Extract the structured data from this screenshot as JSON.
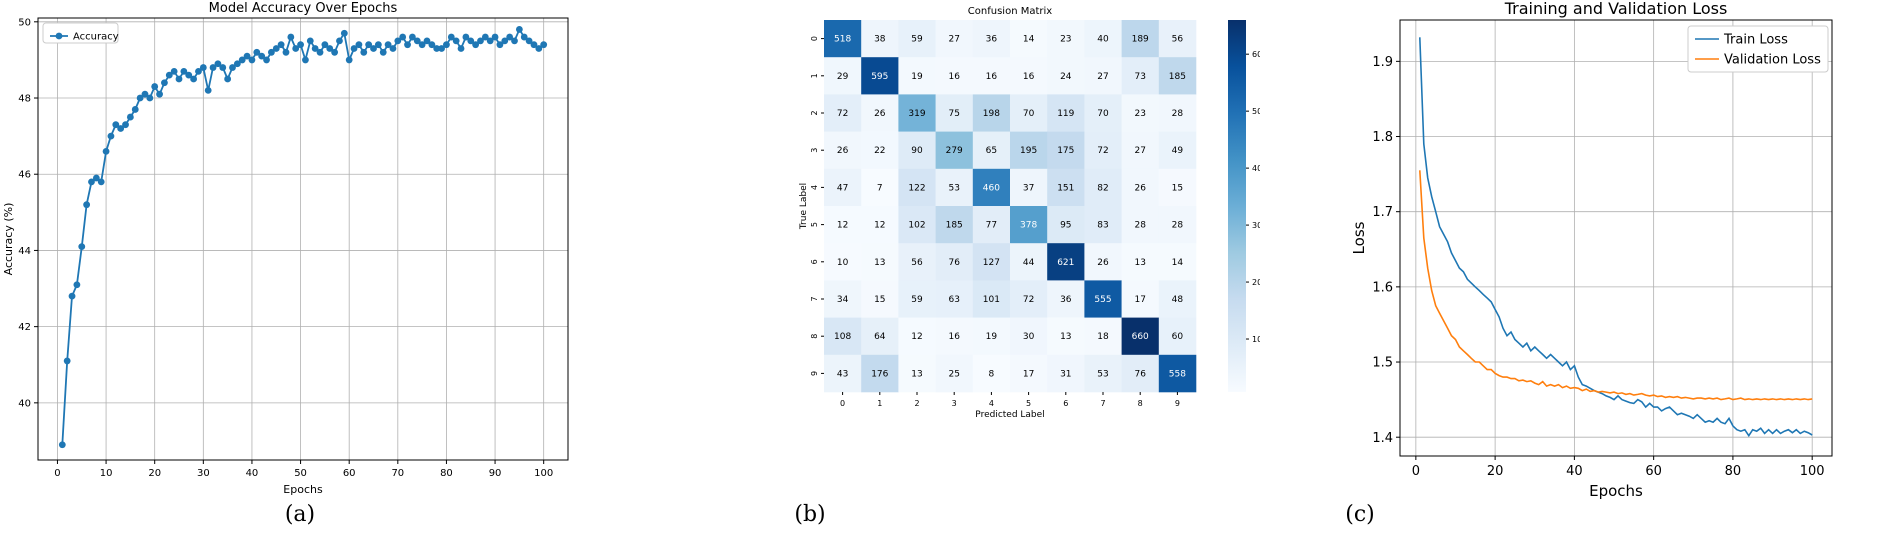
{
  "colors": {
    "blue": "#1f77b4",
    "orange": "#ff7f0e",
    "grid": "#b0b0b0"
  },
  "chart_data": [
    {
      "type": "line",
      "title": "Model Accuracy Over Epochs",
      "xlabel": "Epochs",
      "ylabel": "Accuracy (%)",
      "xlim": [
        -4,
        105
      ],
      "ylim": [
        38.5,
        50.1
      ],
      "xticks": [
        0,
        10,
        20,
        30,
        40,
        50,
        60,
        70,
        80,
        90,
        100
      ],
      "yticks": [
        40,
        42,
        44,
        46,
        48,
        50
      ],
      "grid": true,
      "legend_position": "top-left",
      "caption": "(a)",
      "series": [
        {
          "name": "Accuracy",
          "x": [
            1,
            2,
            3,
            4,
            5,
            6,
            7,
            8,
            9,
            10,
            11,
            12,
            13,
            14,
            15,
            16,
            17,
            18,
            19,
            20,
            21,
            22,
            23,
            24,
            25,
            26,
            27,
            28,
            29,
            30,
            31,
            32,
            33,
            34,
            35,
            36,
            37,
            38,
            39,
            40,
            41,
            42,
            43,
            44,
            45,
            46,
            47,
            48,
            49,
            50,
            51,
            52,
            53,
            54,
            55,
            56,
            57,
            58,
            59,
            60,
            61,
            62,
            63,
            64,
            65,
            66,
            67,
            68,
            69,
            70,
            71,
            72,
            73,
            74,
            75,
            76,
            77,
            78,
            79,
            80,
            81,
            82,
            83,
            84,
            85,
            86,
            87,
            88,
            89,
            90,
            91,
            92,
            93,
            94,
            95,
            96,
            97,
            98,
            99,
            100
          ],
          "values": [
            38.9,
            41.1,
            42.8,
            43.1,
            44.1,
            45.2,
            45.8,
            45.9,
            45.8,
            46.6,
            47.0,
            47.3,
            47.2,
            47.3,
            47.5,
            47.7,
            48.0,
            48.1,
            48.0,
            48.3,
            48.1,
            48.4,
            48.6,
            48.7,
            48.5,
            48.7,
            48.6,
            48.5,
            48.7,
            48.8,
            48.2,
            48.8,
            48.9,
            48.8,
            48.5,
            48.8,
            48.9,
            49.0,
            49.1,
            49.0,
            49.2,
            49.1,
            49.0,
            49.2,
            49.3,
            49.4,
            49.2,
            49.6,
            49.3,
            49.4,
            49.0,
            49.5,
            49.3,
            49.2,
            49.4,
            49.3,
            49.2,
            49.5,
            49.7,
            49.0,
            49.3,
            49.4,
            49.2,
            49.4,
            49.3,
            49.4,
            49.2,
            49.4,
            49.3,
            49.5,
            49.6,
            49.4,
            49.6,
            49.5,
            49.4,
            49.5,
            49.4,
            49.3,
            49.3,
            49.4,
            49.6,
            49.5,
            49.3,
            49.6,
            49.5,
            49.4,
            49.5,
            49.6,
            49.5,
            49.6,
            49.4,
            49.5,
            49.6,
            49.5,
            49.8,
            49.6,
            49.5,
            49.4,
            49.3,
            49.4
          ]
        }
      ]
    },
    {
      "type": "heatmap",
      "title": "Confusion Matrix",
      "xlabel": "Predicted Label",
      "ylabel": "True Label",
      "row_labels": [
        "0",
        "1",
        "2",
        "3",
        "4",
        "5",
        "6",
        "7",
        "8",
        "9"
      ],
      "col_labels": [
        "0",
        "1",
        "2",
        "3",
        "4",
        "5",
        "6",
        "7",
        "8",
        "9"
      ],
      "colorbar_ticks": [
        100,
        200,
        300,
        400,
        500,
        600
      ],
      "vmin": 7,
      "vmax": 660,
      "caption": "(b)",
      "matrix": [
        [
          518,
          38,
          59,
          27,
          36,
          14,
          23,
          40,
          189,
          56
        ],
        [
          29,
          595,
          19,
          16,
          16,
          16,
          24,
          27,
          73,
          185
        ],
        [
          72,
          26,
          319,
          75,
          198,
          70,
          119,
          70,
          23,
          28
        ],
        [
          26,
          22,
          90,
          279,
          65,
          195,
          175,
          72,
          27,
          49
        ],
        [
          47,
          7,
          122,
          53,
          460,
          37,
          151,
          82,
          26,
          15
        ],
        [
          12,
          12,
          102,
          185,
          77,
          378,
          95,
          83,
          28,
          28
        ],
        [
          10,
          13,
          56,
          76,
          127,
          44,
          621,
          26,
          13,
          14
        ],
        [
          34,
          15,
          59,
          63,
          101,
          72,
          36,
          555,
          17,
          48
        ],
        [
          108,
          64,
          12,
          16,
          19,
          30,
          13,
          18,
          660,
          60
        ],
        [
          43,
          176,
          13,
          25,
          8,
          17,
          31,
          53,
          76,
          558
        ]
      ]
    },
    {
      "type": "line",
      "title": "Training and Validation Loss",
      "xlabel": "Epochs",
      "ylabel": "Loss",
      "xlim": [
        -4,
        105
      ],
      "ylim": [
        1.375,
        1.955
      ],
      "xticks": [
        0,
        20,
        40,
        60,
        80,
        100
      ],
      "yticks": [
        1.4,
        1.5,
        1.6,
        1.7,
        1.8,
        1.9
      ],
      "grid": true,
      "legend_position": "top-right",
      "caption": "(c)",
      "series": [
        {
          "name": "Train Loss",
          "color": "#1f77b4",
          "x": [
            1,
            2,
            3,
            4,
            5,
            6,
            7,
            8,
            9,
            10,
            11,
            12,
            13,
            14,
            15,
            16,
            17,
            18,
            19,
            20,
            21,
            22,
            23,
            24,
            25,
            26,
            27,
            28,
            29,
            30,
            31,
            32,
            33,
            34,
            35,
            36,
            37,
            38,
            39,
            40,
            41,
            42,
            43,
            44,
            45,
            46,
            47,
            48,
            49,
            50,
            51,
            52,
            53,
            54,
            55,
            56,
            57,
            58,
            59,
            60,
            61,
            62,
            63,
            64,
            65,
            66,
            67,
            68,
            69,
            70,
            71,
            72,
            73,
            74,
            75,
            76,
            77,
            78,
            79,
            80,
            81,
            82,
            83,
            84,
            85,
            86,
            87,
            88,
            89,
            90,
            91,
            92,
            93,
            94,
            95,
            96,
            97,
            98,
            99,
            100
          ],
          "values": [
            1.932,
            1.79,
            1.745,
            1.72,
            1.7,
            1.68,
            1.67,
            1.66,
            1.645,
            1.635,
            1.625,
            1.62,
            1.61,
            1.605,
            1.6,
            1.595,
            1.59,
            1.585,
            1.58,
            1.57,
            1.56,
            1.545,
            1.535,
            1.54,
            1.53,
            1.525,
            1.52,
            1.525,
            1.515,
            1.52,
            1.515,
            1.51,
            1.505,
            1.51,
            1.505,
            1.5,
            1.495,
            1.5,
            1.49,
            1.495,
            1.48,
            1.47,
            1.468,
            1.465,
            1.462,
            1.46,
            1.458,
            1.455,
            1.453,
            1.45,
            1.455,
            1.45,
            1.448,
            1.446,
            1.445,
            1.45,
            1.447,
            1.44,
            1.445,
            1.44,
            1.44,
            1.435,
            1.438,
            1.44,
            1.435,
            1.43,
            1.432,
            1.43,
            1.428,
            1.425,
            1.43,
            1.425,
            1.42,
            1.422,
            1.42,
            1.425,
            1.42,
            1.418,
            1.425,
            1.415,
            1.41,
            1.408,
            1.41,
            1.402,
            1.41,
            1.408,
            1.412,
            1.405,
            1.41,
            1.405,
            1.41,
            1.405,
            1.408,
            1.41,
            1.406,
            1.41,
            1.405,
            1.408,
            1.406,
            1.403
          ]
        },
        {
          "name": "Validation Loss",
          "color": "#ff7f0e",
          "x": [
            1,
            2,
            3,
            4,
            5,
            6,
            7,
            8,
            9,
            10,
            11,
            12,
            13,
            14,
            15,
            16,
            17,
            18,
            19,
            20,
            21,
            22,
            23,
            24,
            25,
            26,
            27,
            28,
            29,
            30,
            31,
            32,
            33,
            34,
            35,
            36,
            37,
            38,
            39,
            40,
            41,
            42,
            43,
            44,
            45,
            46,
            47,
            48,
            49,
            50,
            51,
            52,
            53,
            54,
            55,
            56,
            57,
            58,
            59,
            60,
            61,
            62,
            63,
            64,
            65,
            66,
            67,
            68,
            69,
            70,
            71,
            72,
            73,
            74,
            75,
            76,
            77,
            78,
            79,
            80,
            81,
            82,
            83,
            84,
            85,
            86,
            87,
            88,
            89,
            90,
            91,
            92,
            93,
            94,
            95,
            96,
            97,
            98,
            99,
            100
          ],
          "values": [
            1.755,
            1.665,
            1.625,
            1.595,
            1.575,
            1.565,
            1.555,
            1.545,
            1.535,
            1.53,
            1.52,
            1.515,
            1.51,
            1.505,
            1.5,
            1.5,
            1.495,
            1.49,
            1.49,
            1.485,
            1.482,
            1.48,
            1.48,
            1.478,
            1.478,
            1.475,
            1.476,
            1.474,
            1.475,
            1.472,
            1.47,
            1.474,
            1.468,
            1.47,
            1.468,
            1.47,
            1.466,
            1.468,
            1.465,
            1.466,
            1.465,
            1.462,
            1.464,
            1.461,
            1.462,
            1.46,
            1.461,
            1.46,
            1.459,
            1.46,
            1.458,
            1.459,
            1.457,
            1.458,
            1.456,
            1.457,
            1.458,
            1.456,
            1.455,
            1.456,
            1.454,
            1.455,
            1.453,
            1.454,
            1.453,
            1.454,
            1.452,
            1.453,
            1.452,
            1.451,
            1.452,
            1.452,
            1.451,
            1.452,
            1.451,
            1.452,
            1.45,
            1.451,
            1.452,
            1.45,
            1.451,
            1.452,
            1.45,
            1.451,
            1.45,
            1.451,
            1.45,
            1.451,
            1.45,
            1.451,
            1.45,
            1.451,
            1.45,
            1.451,
            1.45,
            1.451,
            1.45,
            1.451,
            1.45,
            1.451
          ]
        }
      ]
    }
  ]
}
